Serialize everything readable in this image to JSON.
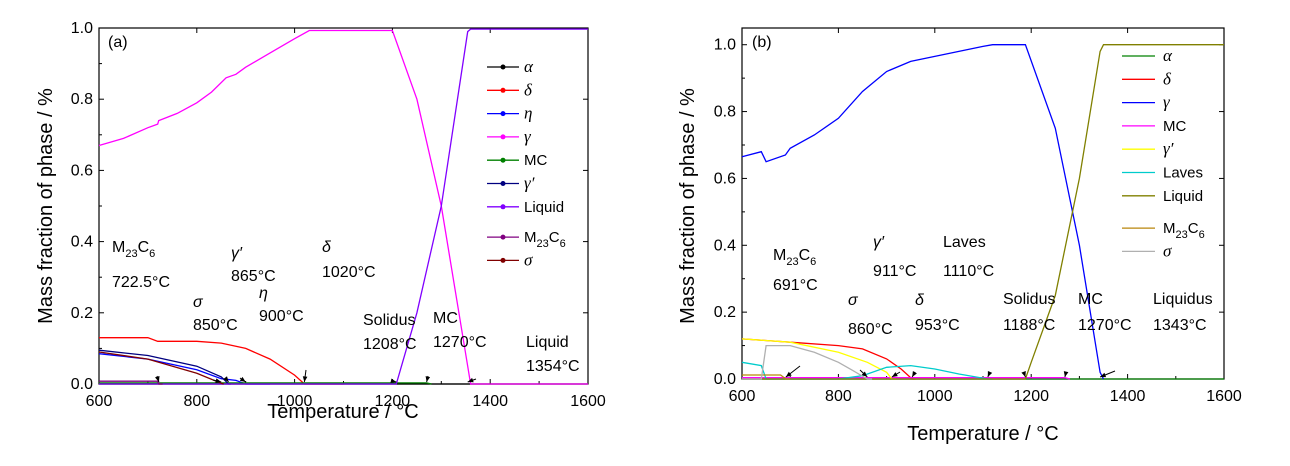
{
  "chart_data": [
    {
      "type": "line",
      "panel_label": "(a)",
      "xlabel": "Temperature / °C",
      "ylabel": "Mass fraction of phase / %",
      "xlim": [
        600,
        1600
      ],
      "ylim": [
        0,
        1.0
      ],
      "xticks": [
        "600",
        "800",
        "1000",
        "1200",
        "1400",
        "1600"
      ],
      "yticks": [
        "0.0",
        "0.2",
        "0.4",
        "0.6",
        "0.8",
        "1.0"
      ],
      "legend_position": "right",
      "series": [
        {
          "name": "α",
          "italic": true,
          "color": "#000000",
          "x": [
            600,
            1600
          ],
          "y": [
            0.0,
            0.0
          ]
        },
        {
          "name": "δ",
          "italic": true,
          "color": "#ff0000",
          "x": [
            600,
            700,
            720,
            800,
            850,
            900,
            950,
            1000,
            1020,
            1100
          ],
          "y": [
            0.13,
            0.13,
            0.12,
            0.12,
            0.115,
            0.1,
            0.07,
            0.025,
            0.0,
            0.0
          ]
        },
        {
          "name": "η",
          "italic": true,
          "color": "#0000ff",
          "x": [
            600,
            700,
            800,
            850,
            880,
            900,
            950
          ],
          "y": [
            0.085,
            0.07,
            0.04,
            0.015,
            0.01,
            0.0,
            0.0
          ]
        },
        {
          "name": "γ",
          "italic": true,
          "color": "#ff00ff",
          "x": [
            600,
            650,
            700,
            720,
            722,
            760,
            800,
            830,
            860,
            880,
            900,
            950,
            1000,
            1030,
            1200,
            1250,
            1300,
            1354,
            1360,
            1600
          ],
          "y": [
            0.67,
            0.69,
            0.72,
            0.73,
            0.74,
            0.76,
            0.79,
            0.82,
            0.86,
            0.87,
            0.89,
            0.93,
            0.97,
            0.993,
            0.993,
            0.8,
            0.5,
            0.05,
            0.0,
            0.0
          ]
        },
        {
          "name": "MC",
          "italic": false,
          "color": "#008000",
          "x": [
            600,
            1270,
            1280
          ],
          "y": [
            0.003,
            0.003,
            0.0
          ]
        },
        {
          "name": "γ′",
          "italic": true,
          "color": "#000080",
          "x": [
            600,
            700,
            800,
            850,
            865,
            870
          ],
          "y": [
            0.095,
            0.08,
            0.05,
            0.02,
            0.0,
            0.0
          ]
        },
        {
          "name": "Liquid",
          "italic": false,
          "color": "#8000ff",
          "x": [
            600,
            1208,
            1250,
            1300,
            1354,
            1360,
            1600
          ],
          "y": [
            0.0,
            0.0,
            0.2,
            0.5,
            0.99,
            0.997,
            0.997
          ]
        },
        {
          "name": "M23C6",
          "italic": false,
          "color": "#800080",
          "x": [
            600,
            720,
            722.5,
            730
          ],
          "y": [
            0.008,
            0.008,
            0.0,
            0.0
          ]
        },
        {
          "name": "σ",
          "italic": true,
          "color": "#800000",
          "x": [
            600,
            700,
            800,
            850,
            855
          ],
          "y": [
            0.09,
            0.07,
            0.03,
            0.002,
            0.0
          ]
        }
      ],
      "annotations": [
        {
          "text": "M23C6",
          "line2": "722.5°C",
          "x": 722.5,
          "y": 0.0
        },
        {
          "text": "σ",
          "italic": true,
          "line2": "850°C",
          "x": 850,
          "y": 0.0
        },
        {
          "text": "γ′",
          "italic": true,
          "line2": "865°C",
          "x": 865,
          "y": 0.0
        },
        {
          "text": "η",
          "italic": true,
          "line2": "900°C",
          "x": 900,
          "y": 0.0
        },
        {
          "text": "δ",
          "italic": true,
          "line2": "1020°C",
          "x": 1020,
          "y": 0.0
        },
        {
          "text": "Solidus",
          "line2": "1208°C",
          "x": 1208,
          "y": 0.0
        },
        {
          "text": "MC",
          "line2": "1270°C",
          "x": 1270,
          "y": 0.0
        },
        {
          "text": "Liquid",
          "line2": "1354°C",
          "x": 1354,
          "y": 0.0
        }
      ]
    },
    {
      "type": "line",
      "panel_label": "(b)",
      "xlabel": "Temperature / °C",
      "ylabel": "Mass fraction of phase / %",
      "xlim": [
        600,
        1600
      ],
      "ylim": [
        0,
        1.05
      ],
      "xticks": [
        "600",
        "800",
        "1000",
        "1200",
        "1400",
        "1600"
      ],
      "yticks": [
        "0.0",
        "0.2",
        "0.4",
        "0.6",
        "0.8",
        "1.0"
      ],
      "legend_position": "right",
      "series": [
        {
          "name": "α",
          "italic": true,
          "color": "#008000",
          "x": [
            600,
            1600
          ],
          "y": [
            0.0,
            0.0
          ]
        },
        {
          "name": "δ",
          "italic": true,
          "color": "#ff0000",
          "x": [
            600,
            700,
            800,
            850,
            900,
            930,
            953,
            960
          ],
          "y": [
            0.12,
            0.11,
            0.1,
            0.09,
            0.06,
            0.03,
            0.0,
            0.0
          ]
        },
        {
          "name": "γ",
          "italic": true,
          "color": "#0000ff",
          "x": [
            600,
            640,
            650,
            690,
            700,
            750,
            800,
            850,
            900,
            950,
            1000,
            1050,
            1100,
            1120,
            1188,
            1250,
            1300,
            1343,
            1350
          ],
          "y": [
            0.665,
            0.68,
            0.65,
            0.67,
            0.69,
            0.73,
            0.78,
            0.86,
            0.92,
            0.95,
            0.965,
            0.98,
            0.995,
            1.0,
            1.0,
            0.75,
            0.4,
            0.02,
            0.0
          ]
        },
        {
          "name": "MC",
          "italic": false,
          "color": "#ff00ff",
          "x": [
            600,
            1270,
            1280
          ],
          "y": [
            0.004,
            0.004,
            0.0
          ]
        },
        {
          "name": "γ′",
          "italic": true,
          "color": "#ffff00",
          "x": [
            600,
            700,
            800,
            860,
            900,
            911,
            920
          ],
          "y": [
            0.12,
            0.11,
            0.08,
            0.05,
            0.02,
            0.0,
            0.0
          ]
        },
        {
          "name": "Laves",
          "italic": false,
          "color": "#00cccc",
          "x": [
            600,
            640,
            650,
            700,
            800,
            850,
            900,
            950,
            1000,
            1050,
            1110,
            1120
          ],
          "y": [
            0.05,
            0.04,
            0.0,
            0.0,
            0.0,
            0.01,
            0.035,
            0.04,
            0.03,
            0.015,
            0.0,
            0.0
          ]
        },
        {
          "name": "Liquid",
          "italic": false,
          "color": "#808000",
          "x": [
            600,
            1188,
            1200,
            1250,
            1300,
            1343,
            1350,
            1600
          ],
          "y": [
            0.0,
            0.0,
            0.05,
            0.25,
            0.6,
            0.98,
            1.0,
            1.0
          ]
        },
        {
          "name": "M23C6",
          "italic": false,
          "color": "#b8860b",
          "x": [
            600,
            680,
            691,
            700
          ],
          "y": [
            0.012,
            0.012,
            0.0,
            0.0
          ]
        },
        {
          "name": "σ",
          "italic": true,
          "color": "#b0b0b0",
          "x": [
            600,
            640,
            650,
            700,
            750,
            800,
            830,
            860,
            870
          ],
          "y": [
            0.0,
            0.0,
            0.1,
            0.1,
            0.08,
            0.05,
            0.025,
            0.0,
            0.0
          ]
        }
      ],
      "annotations": [
        {
          "text": "M23C6",
          "line2": "691°C",
          "x": 691,
          "y": 0.0
        },
        {
          "text": "σ",
          "italic": true,
          "line2": "860°C",
          "x": 860,
          "y": 0.0
        },
        {
          "text": "γ′",
          "italic": true,
          "line2": "911°C",
          "x": 911,
          "y": 0.0
        },
        {
          "text": "δ",
          "italic": true,
          "line2": "953°C",
          "x": 953,
          "y": 0.0
        },
        {
          "text": "Laves",
          "line2": "1110°C",
          "x": 1110,
          "y": 0.0
        },
        {
          "text": "Solidus",
          "line2": "1188°C",
          "x": 1188,
          "y": 0.0
        },
        {
          "text": "MC",
          "line2": "1270°C",
          "x": 1270,
          "y": 0.0
        },
        {
          "text": "Liquidus",
          "line2": "1343°C",
          "x": 1343,
          "y": 0.0
        }
      ]
    }
  ]
}
